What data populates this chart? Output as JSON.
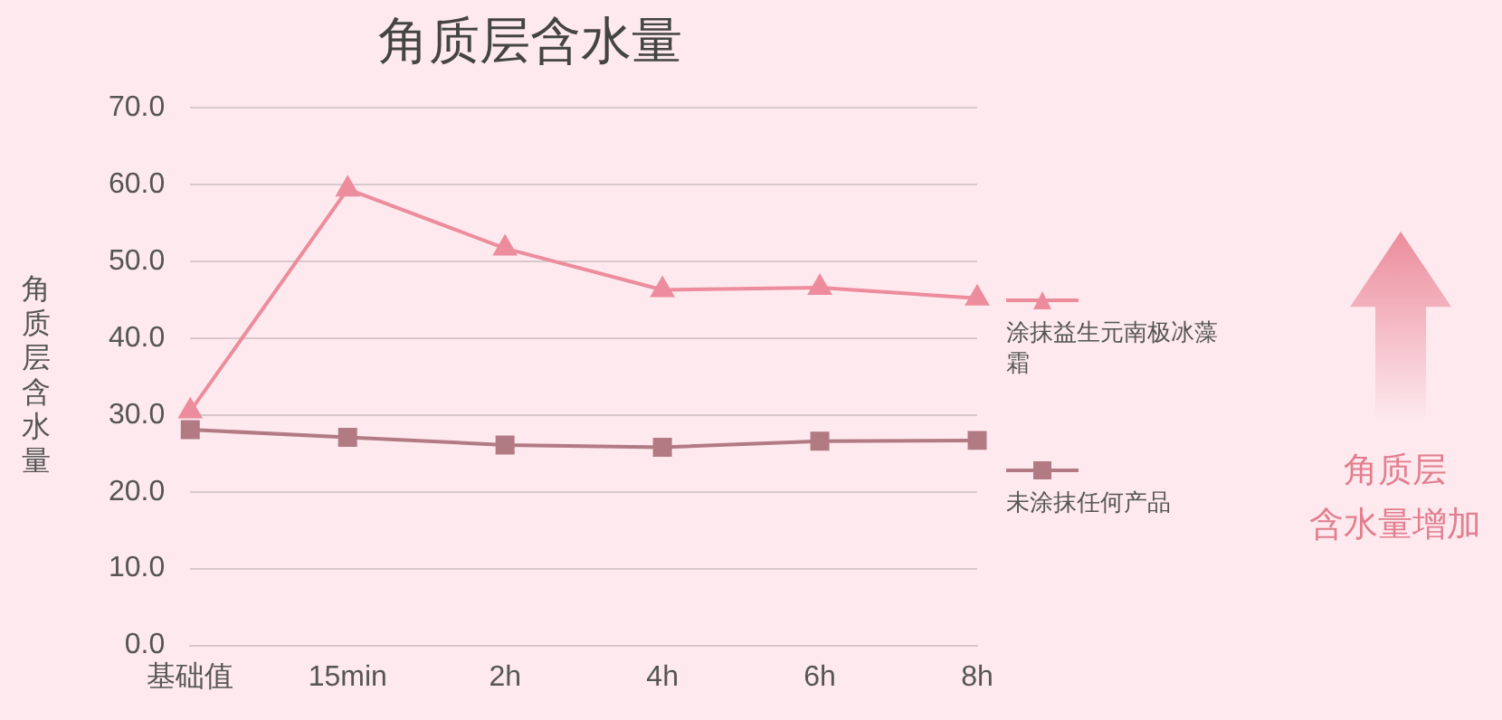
{
  "chart_data": {
    "type": "line",
    "title": "角质层含水量",
    "ylabel": "角质层含水量",
    "categories": [
      "基础值",
      "15min",
      "2h",
      "4h",
      "6h",
      "8h"
    ],
    "series": [
      {
        "name": "涂抹益生元南极冰藻霜",
        "color": "#ec8c9c",
        "marker": "triangle",
        "values": [
          30.5,
          59.4,
          51.7,
          46.3,
          46.6,
          45.2
        ]
      },
      {
        "name": "未涂抹任何产品",
        "color": "#b27a83",
        "marker": "square",
        "values": [
          28.1,
          27.1,
          26.1,
          25.8,
          26.6,
          26.7
        ]
      }
    ],
    "ylim": [
      0,
      70
    ],
    "yticks": [
      {
        "value": 0,
        "label": "0.0"
      },
      {
        "value": 10,
        "label": "10.0"
      },
      {
        "value": 20,
        "label": "20.0"
      },
      {
        "value": 30,
        "label": "30.0"
      },
      {
        "value": 40,
        "label": "40.0"
      },
      {
        "value": 50,
        "label": "50.0"
      },
      {
        "value": 60,
        "label": "60.0"
      },
      {
        "value": 70,
        "label": "70.0"
      }
    ],
    "grid": "y",
    "legend": "right",
    "line_style": "solid",
    "annotations": [
      "角质层含水量增加"
    ]
  }
}
